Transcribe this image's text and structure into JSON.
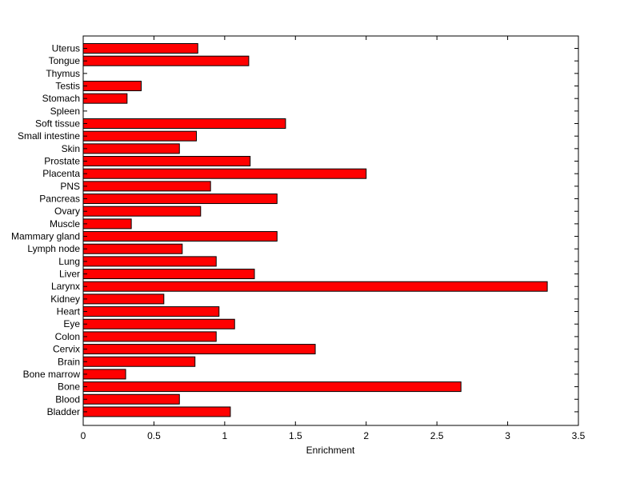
{
  "chart_data": {
    "type": "bar",
    "orientation": "horizontal",
    "xlabel": "Enrichment",
    "ylabel": "",
    "title": "",
    "xlim": [
      0,
      3.5
    ],
    "xticks": [
      "0",
      "0.5",
      "1",
      "1.5",
      "2",
      "2.5",
      "3",
      "3.5"
    ],
    "grid": false,
    "bar_color": "#ff0000",
    "bar_edge_color": "#000000",
    "categories": [
      "Uterus",
      "Tongue",
      "Thymus",
      "Testis",
      "Stomach",
      "Spleen",
      "Soft tissue",
      "Small intestine",
      "Skin",
      "Prostate",
      "Placenta",
      "PNS",
      "Pancreas",
      "Ovary",
      "Muscle",
      "Mammary gland",
      "Lymph node",
      "Lung",
      "Liver",
      "Larynx",
      "Kidney",
      "Heart",
      "Eye",
      "Colon",
      "Cervix",
      "Brain",
      "Bone marrow",
      "Bone",
      "Blood",
      "Bladder"
    ],
    "values": [
      0.81,
      1.17,
      0,
      0.41,
      0.31,
      0,
      1.43,
      0.8,
      0.68,
      1.18,
      2.0,
      0.9,
      1.37,
      0.83,
      0.34,
      1.37,
      0.7,
      0.94,
      1.21,
      3.28,
      0.57,
      0.96,
      1.07,
      0.94,
      1.64,
      0.79,
      0.3,
      2.67,
      0.68,
      1.04
    ]
  }
}
